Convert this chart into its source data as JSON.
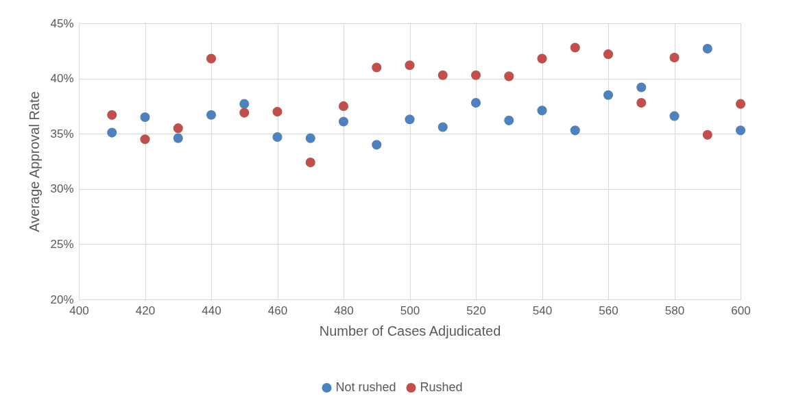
{
  "chart_data": {
    "type": "scatter",
    "xlabel": "Number of Cases Adjudicated",
    "ylabel": "Average Approval Rate",
    "x": [
      410,
      420,
      430,
      440,
      450,
      460,
      470,
      480,
      490,
      500,
      510,
      520,
      530,
      540,
      550,
      560,
      570,
      580,
      590,
      600
    ],
    "series": [
      {
        "name": "Not rushed",
        "color": "#4f81bd",
        "values": [
          35.1,
          36.5,
          34.6,
          36.7,
          37.7,
          34.7,
          34.6,
          36.1,
          34.0,
          36.3,
          35.6,
          37.8,
          36.2,
          37.1,
          35.3,
          38.5,
          39.2,
          36.6,
          42.7,
          35.3
        ]
      },
      {
        "name": "Rushed",
        "color": "#c0504d",
        "values": [
          36.7,
          34.5,
          35.5,
          41.8,
          36.9,
          37.0,
          32.4,
          37.5,
          41.0,
          41.2,
          40.3,
          40.3,
          40.2,
          41.8,
          42.8,
          42.2,
          37.8,
          41.9,
          34.9,
          37.7
        ]
      }
    ],
    "xlim": [
      400,
      600
    ],
    "xticks": [
      400,
      420,
      440,
      460,
      480,
      500,
      520,
      540,
      560,
      580,
      600
    ],
    "ylim": [
      20,
      45
    ],
    "yticks": [
      {
        "value": 20,
        "label": "20%"
      },
      {
        "value": 25,
        "label": "25%"
      },
      {
        "value": 30,
        "label": "30%"
      },
      {
        "value": 35,
        "label": "35%"
      },
      {
        "value": 40,
        "label": "40%"
      },
      {
        "value": 45,
        "label": "45%"
      }
    ],
    "grid": true,
    "legend": "bottom",
    "marker": "circle"
  }
}
